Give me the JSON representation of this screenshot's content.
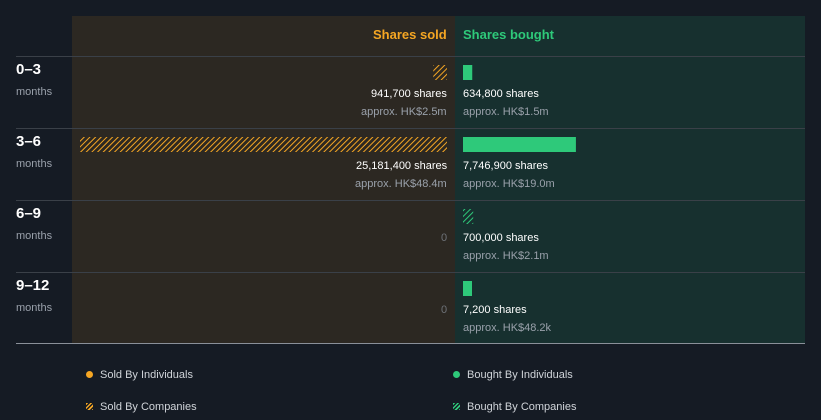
{
  "chart_data": {
    "type": "bar",
    "headers": {
      "sold": "Shares sold",
      "bought": "Shares bought"
    },
    "periods": [
      {
        "label": "0–3",
        "unit": "months",
        "sold": {
          "shares": 941700,
          "text": "941,700 shares",
          "approx": "approx. HK$2.5m",
          "kind": "companies"
        },
        "bought": {
          "shares": 634800,
          "text": "634,800 shares",
          "approx": "approx. HK$1.5m",
          "kind": "individuals"
        }
      },
      {
        "label": "3–6",
        "unit": "months",
        "sold": {
          "shares": 25181400,
          "text": "25,181,400 shares",
          "approx": "approx. HK$48.4m",
          "kind": "companies"
        },
        "bought": {
          "shares": 7746900,
          "text": "7,746,900 shares",
          "approx": "approx. HK$19.0m",
          "kind": "individuals"
        }
      },
      {
        "label": "6–9",
        "unit": "months",
        "sold": {
          "shares": 0,
          "zero_text": "0"
        },
        "bought": {
          "shares": 700000,
          "text": "700,000 shares",
          "approx": "approx. HK$2.1m",
          "kind": "companies"
        }
      },
      {
        "label": "9–12",
        "unit": "months",
        "sold": {
          "shares": 0,
          "zero_text": "0"
        },
        "bought": {
          "shares": 7200,
          "text": "7,200 shares",
          "approx": "approx. HK$48.2k",
          "kind": "individuals"
        }
      }
    ],
    "legend": [
      {
        "label": "Sold By Individuals",
        "style": "solid",
        "color": "#f5a623"
      },
      {
        "label": "Sold By Companies",
        "style": "hatched",
        "color": "#f5a623"
      },
      {
        "label": "Bought By Individuals",
        "style": "solid",
        "color": "#2ec97a"
      },
      {
        "label": "Bought By Companies",
        "style": "hatched",
        "color": "#2ec97a"
      }
    ],
    "colors": {
      "sold": "#f5a623",
      "bought": "#2ec97a",
      "sold_panel": "#2c2822",
      "bought_panel": "#17302f",
      "background": "#151b24"
    }
  }
}
